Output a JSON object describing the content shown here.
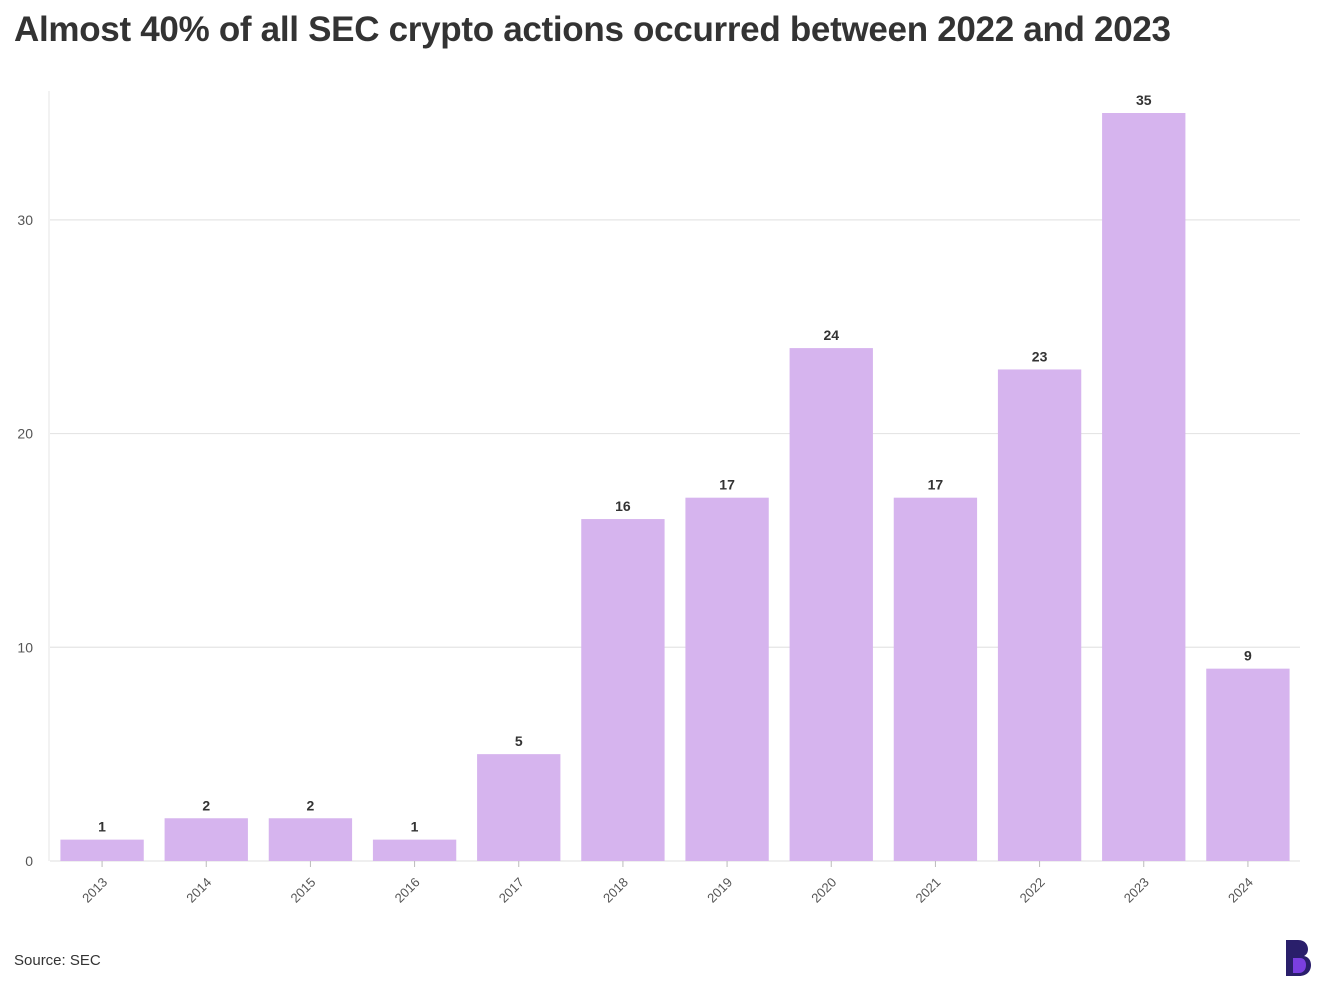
{
  "title": "Almost 40% of all SEC crypto actions occurred between 2022 and 2023",
  "source": "Source: SEC",
  "logo_icon": "brand-b-logo",
  "colors": {
    "bar": "#D6B4EE",
    "grid": "#E5E5E5",
    "text": "#333333"
  },
  "chart_data": {
    "type": "bar",
    "categories": [
      "2013",
      "2014",
      "2015",
      "2016",
      "2017",
      "2018",
      "2019",
      "2020",
      "2021",
      "2022",
      "2023",
      "2024"
    ],
    "values": [
      1,
      2,
      2,
      1,
      5,
      16,
      17,
      24,
      17,
      23,
      35,
      9
    ],
    "title": "Almost 40% of all SEC crypto actions occurred between 2022 and 2023",
    "xlabel": "",
    "ylabel": "",
    "ylim": [
      0,
      36
    ],
    "yticks": [
      0,
      10,
      20,
      30
    ],
    "grid": true,
    "data_labels": true
  }
}
